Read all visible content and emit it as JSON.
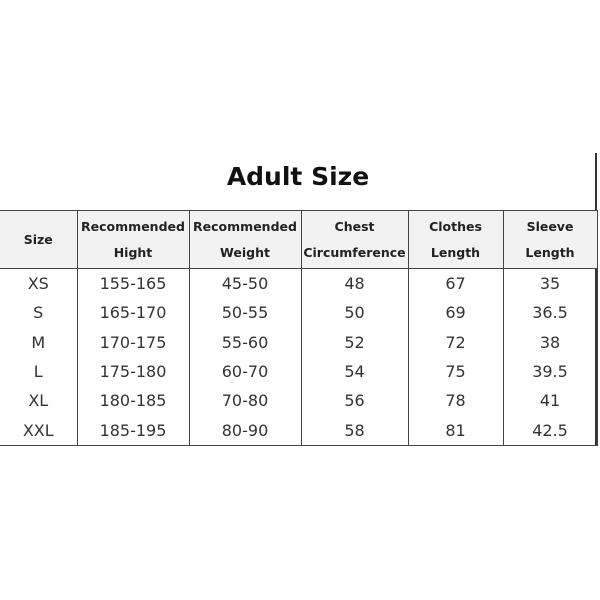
{
  "title": "Adult Size",
  "table": {
    "headers": [
      [
        "Size"
      ],
      [
        "Recommended",
        "Hight"
      ],
      [
        "Recommended",
        "Weight"
      ],
      [
        "Chest",
        "Circumference"
      ],
      [
        "Clothes",
        "Length"
      ],
      [
        "Sleeve",
        "Length"
      ]
    ],
    "rows": [
      [
        "XS",
        "155-165",
        "45-50",
        "48",
        "67",
        "35"
      ],
      [
        "S",
        "165-170",
        "50-55",
        "50",
        "69",
        "36.5"
      ],
      [
        "M",
        "170-175",
        "55-60",
        "52",
        "72",
        "38"
      ],
      [
        "L",
        "175-180",
        "60-70",
        "54",
        "75",
        "39.5"
      ],
      [
        "XL",
        "180-185",
        "70-80",
        "56",
        "78",
        "41"
      ],
      [
        "XXL",
        "185-195",
        "80-90",
        "58",
        "81",
        "42.5"
      ]
    ]
  }
}
